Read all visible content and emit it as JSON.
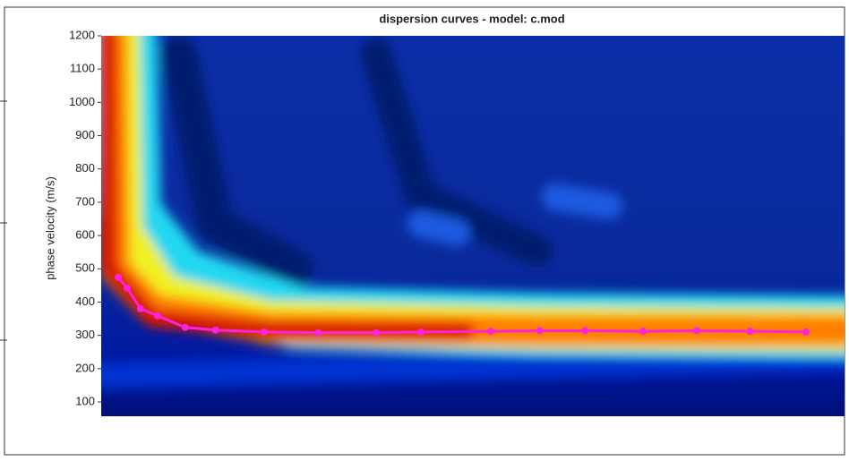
{
  "chart_data": {
    "type": "line",
    "title": "dispersion curves - model: c.mod",
    "y_label": "phase velocity (m/s)",
    "x": [
      2.3,
      3.5,
      5.3,
      7.6,
      11.3,
      15.4,
      21.9,
      29.2,
      37,
      43,
      52.4,
      59,
      65.1,
      72.9,
      80.1,
      87.3,
      94.8
    ],
    "xlim": [
      0,
      100
    ],
    "series": [
      {
        "color": "#ff22dd",
        "values": [
          474,
          442,
          380,
          359,
          324,
          316,
          310,
          308,
          308,
          310,
          312,
          314,
          314,
          312,
          314,
          312,
          310
        ]
      }
    ],
    "ylim": [
      57,
      1200
    ],
    "yticks": [
      100,
      200,
      300,
      400,
      500,
      600,
      700,
      800,
      900,
      1000,
      1100,
      1200
    ]
  }
}
